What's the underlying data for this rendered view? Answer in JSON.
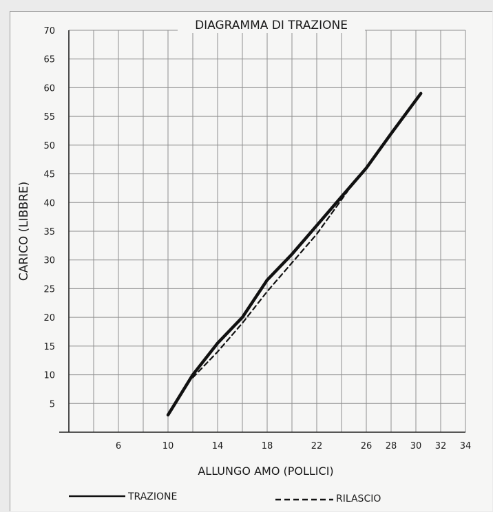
{
  "chart_data": {
    "type": "line",
    "title": "DIAGRAMMA DI TRAZIONE",
    "xlabel": "ALLUNGO AMO (POLLICI)",
    "ylabel": "CARICO (LIBBRE)",
    "xlim": [
      2,
      34
    ],
    "ylim": [
      0,
      70
    ],
    "x_ticks": [
      6,
      10,
      14,
      18,
      22,
      26,
      28,
      30,
      32,
      34
    ],
    "y_ticks": [
      5,
      10,
      15,
      20,
      25,
      30,
      35,
      40,
      45,
      50,
      55,
      60,
      65,
      70
    ],
    "grid": true,
    "legend_position": "bottom",
    "series": [
      {
        "name": "TRAZIONE",
        "style": "solid",
        "color": "#111111",
        "points": [
          {
            "x": 10,
            "y": 3
          },
          {
            "x": 12,
            "y": 10
          },
          {
            "x": 14,
            "y": 15.5
          },
          {
            "x": 16,
            "y": 20
          },
          {
            "x": 18,
            "y": 26.5
          },
          {
            "x": 20,
            "y": 31
          },
          {
            "x": 22,
            "y": 36
          },
          {
            "x": 24,
            "y": 41
          },
          {
            "x": 26,
            "y": 46
          },
          {
            "x": 28,
            "y": 52
          },
          {
            "x": 30.4,
            "y": 59
          }
        ]
      },
      {
        "name": "RILASCIO",
        "style": "dashed",
        "color": "#111111",
        "points": [
          {
            "x": 12,
            "y": 9.5
          },
          {
            "x": 14,
            "y": 14
          },
          {
            "x": 16,
            "y": 19
          },
          {
            "x": 18,
            "y": 24.5
          },
          {
            "x": 20,
            "y": 29.5
          },
          {
            "x": 22,
            "y": 34.5
          },
          {
            "x": 24.5,
            "y": 42
          }
        ]
      }
    ]
  }
}
